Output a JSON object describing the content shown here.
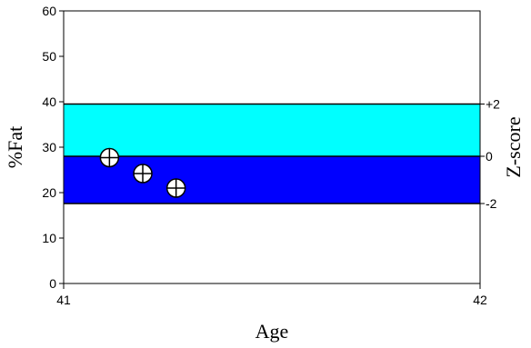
{
  "chart_data": {
    "type": "scatter",
    "xlabel": "Age",
    "ylabel": "%Fat",
    "y2label": "Z-score",
    "xlim": [
      41,
      42
    ],
    "ylim": [
      0,
      60
    ],
    "x_ticks": [
      "41",
      "42"
    ],
    "y_ticks": [
      "0",
      "10",
      "20",
      "30",
      "40",
      "50",
      "60"
    ],
    "z_ticks": [
      {
        "label": "+2",
        "y": 39.5
      },
      {
        "label": "0",
        "y": 28
      },
      {
        "label": "-2",
        "y": 17.6
      }
    ],
    "bands": [
      {
        "from": 28,
        "to": 39.5,
        "color": "#00ffff"
      },
      {
        "from": 17.6,
        "to": 28,
        "color": "#0000ff"
      }
    ],
    "points": [
      {
        "x": 41.11,
        "y": 27.7
      },
      {
        "x": 41.19,
        "y": 24.2
      },
      {
        "x": 41.27,
        "y": 21.0
      }
    ],
    "grid": false
  }
}
